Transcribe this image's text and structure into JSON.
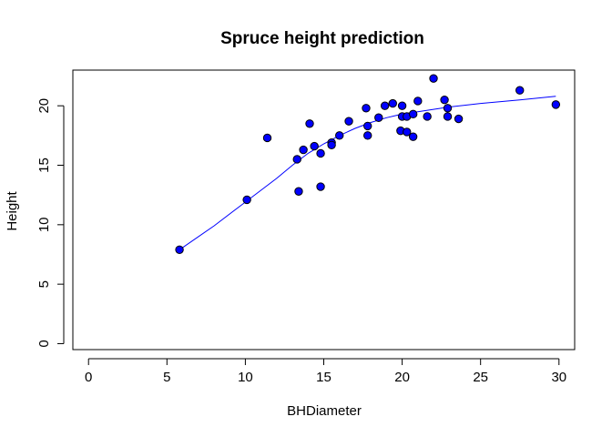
{
  "chart_data": {
    "type": "scatter",
    "title": "Spruce height prediction",
    "xlabel": "BHDiameter",
    "ylabel": "Height",
    "xlim": [
      -1.0,
      31.0
    ],
    "ylim": [
      -0.5,
      23.0
    ],
    "x_ticks": [
      0,
      5,
      10,
      15,
      20,
      25,
      30
    ],
    "y_ticks": [
      0,
      5,
      10,
      15,
      20
    ],
    "grid": false,
    "colors": {
      "point_fill": "#0000ff",
      "point_edge": "#000000",
      "line": "#0000ff"
    },
    "points": [
      [
        5.8,
        7.9
      ],
      [
        10.1,
        12.1
      ],
      [
        11.4,
        17.3
      ],
      [
        13.3,
        15.5
      ],
      [
        13.4,
        12.8
      ],
      [
        13.7,
        16.3
      ],
      [
        14.1,
        18.5
      ],
      [
        14.4,
        16.6
      ],
      [
        14.8,
        16.0
      ],
      [
        14.8,
        13.2
      ],
      [
        15.5,
        16.9
      ],
      [
        15.5,
        16.7
      ],
      [
        16.0,
        17.5
      ],
      [
        16.6,
        18.7
      ],
      [
        17.7,
        19.8
      ],
      [
        17.8,
        17.5
      ],
      [
        17.8,
        18.3
      ],
      [
        18.5,
        19.0
      ],
      [
        18.9,
        20.0
      ],
      [
        19.4,
        20.2
      ],
      [
        19.9,
        17.9
      ],
      [
        20.0,
        20.0
      ],
      [
        20.0,
        19.1
      ],
      [
        20.3,
        17.8
      ],
      [
        20.3,
        19.1
      ],
      [
        20.7,
        17.4
      ],
      [
        20.7,
        19.3
      ],
      [
        21.0,
        20.4
      ],
      [
        21.6,
        19.1
      ],
      [
        22.0,
        22.3
      ],
      [
        22.7,
        20.5
      ],
      [
        22.9,
        19.8
      ],
      [
        22.9,
        19.1
      ],
      [
        23.6,
        18.9
      ],
      [
        27.5,
        21.3
      ],
      [
        29.8,
        20.1
      ]
    ],
    "fitted_line": [
      [
        5.8,
        7.9
      ],
      [
        8.0,
        9.9
      ],
      [
        10.0,
        11.9
      ],
      [
        12.0,
        13.9
      ],
      [
        13.0,
        15.0
      ],
      [
        14.0,
        16.0
      ],
      [
        15.0,
        16.8
      ],
      [
        16.0,
        17.5
      ],
      [
        17.0,
        18.1
      ],
      [
        18.0,
        18.6
      ],
      [
        19.0,
        19.0
      ],
      [
        20.0,
        19.3
      ],
      [
        21.0,
        19.5
      ],
      [
        22.0,
        19.7
      ],
      [
        23.0,
        19.9
      ],
      [
        25.0,
        20.2
      ],
      [
        27.5,
        20.5
      ],
      [
        29.8,
        20.8
      ]
    ]
  }
}
